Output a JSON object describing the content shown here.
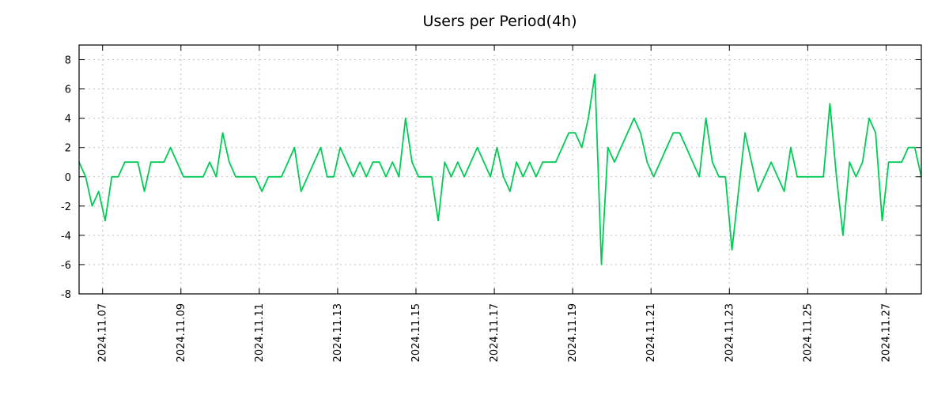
{
  "title": "Users per Period(4h)",
  "colors": {
    "line": "#00cc55",
    "grid": "#c0c0c0",
    "border": "#000000",
    "text": "#000000",
    "background": "#ffffff"
  },
  "chart_data": {
    "type": "line",
    "title": "Users per Period(4h)",
    "xlabel": "",
    "ylabel": "",
    "period": "4h",
    "grid": true,
    "legend": "none",
    "ylim": [
      -8,
      9
    ],
    "yticks": [
      -8,
      -6,
      -4,
      -2,
      0,
      2,
      4,
      6,
      8
    ],
    "x_tick_labels": [
      "2024.11.07",
      "2024.11.09",
      "2024.11.11",
      "2024.11.13",
      "2024.11.15",
      "2024.11.17",
      "2024.11.19",
      "2024.11.21",
      "2024.11.23",
      "2024.11.25",
      "2024.11.27"
    ],
    "x_first_tick_index": 3.6,
    "x_tick_step": 12,
    "points_per_day": 6,
    "values": [
      1,
      0,
      -2,
      -1,
      -3,
      0,
      0,
      1,
      1,
      1,
      -1,
      1,
      1,
      1,
      2,
      1,
      0,
      0,
      0,
      0,
      1,
      0,
      3,
      1,
      0,
      0,
      0,
      0,
      -1,
      0,
      0,
      0,
      1,
      2,
      -1,
      0,
      1,
      2,
      0,
      0,
      2,
      1,
      0,
      1,
      0,
      1,
      1,
      0,
      1,
      0,
      4,
      1,
      0,
      0,
      0,
      -3,
      1,
      0,
      1,
      0,
      1,
      2,
      1,
      0,
      2,
      0,
      -1,
      1,
      0,
      1,
      0,
      1,
      1,
      1,
      2,
      3,
      3,
      2,
      4,
      7,
      -6,
      2,
      1,
      2,
      3,
      4,
      3,
      1,
      0,
      1,
      2,
      3,
      3,
      2,
      1,
      0,
      4,
      1,
      0,
      0,
      -5,
      -1,
      3,
      1,
      -1,
      0,
      1,
      0,
      -1,
      2,
      0,
      0,
      0,
      0,
      0,
      5,
      0,
      -4,
      1,
      0,
      1,
      4,
      3,
      -3,
      1,
      1,
      1,
      2,
      2,
      0
    ]
  }
}
